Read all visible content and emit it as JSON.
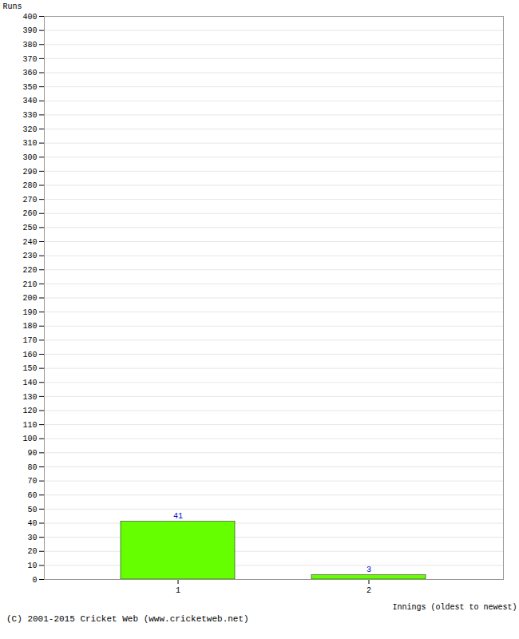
{
  "chart_data": {
    "type": "bar",
    "categories": [
      1,
      2
    ],
    "values": [
      41,
      3
    ],
    "color": "#66ff00",
    "xlabel": "Innings (oldest to newest)",
    "ylabel": "Runs",
    "ylim": [
      0,
      400
    ],
    "yticks": [
      0,
      10,
      20,
      30,
      40,
      50,
      60,
      70,
      80,
      90,
      100,
      110,
      120,
      130,
      140,
      150,
      160,
      170,
      180,
      190,
      200,
      210,
      220,
      230,
      240,
      250,
      260,
      270,
      280,
      290,
      300,
      310,
      320,
      330,
      340,
      350,
      360,
      370,
      380,
      390,
      400
    ],
    "grid": true,
    "data_labels": true,
    "annotations": [
      "(C) 2001-2015 Cricket Web (www.cricketweb.net)"
    ]
  }
}
